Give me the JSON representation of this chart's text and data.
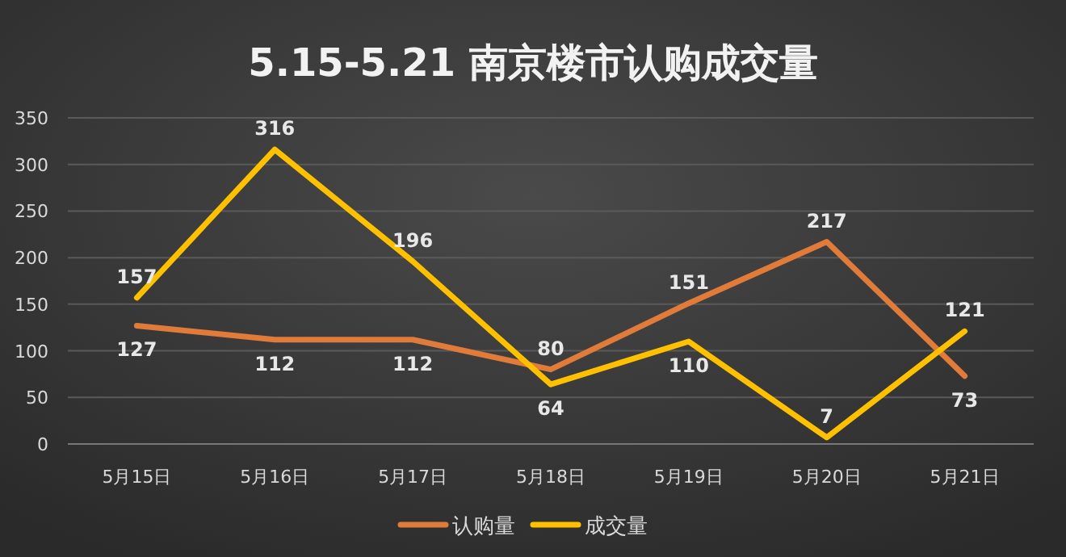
{
  "chart_data": {
    "type": "line",
    "title": "5.15-5.21 南京楼市认购成交量",
    "categories": [
      "5月15日",
      "5月16日",
      "5月17日",
      "5月18日",
      "5月19日",
      "5月20日",
      "5月21日"
    ],
    "series": [
      {
        "name": "认购量",
        "color": "#e07b39",
        "values": [
          127,
          112,
          112,
          80,
          151,
          217,
          73
        ]
      },
      {
        "name": "成交量",
        "color": "#ffc000",
        "values": [
          157,
          316,
          196,
          64,
          110,
          7,
          121
        ]
      }
    ],
    "ylim": [
      0,
      350
    ],
    "yticks": [
      0,
      50,
      100,
      150,
      200,
      250,
      300,
      350
    ],
    "grid": "y",
    "legend": "bottom",
    "data_labels": true
  }
}
